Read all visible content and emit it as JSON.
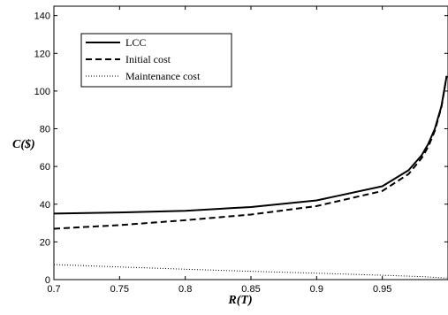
{
  "chart_data": {
    "type": "line",
    "title": "",
    "xlabel": "R(T)",
    "ylabel": "C($)",
    "xlim": [
      0.7,
      1.0
    ],
    "ylim": [
      0,
      145
    ],
    "xticks": [
      0.7,
      0.75,
      0.8,
      0.85,
      0.9,
      0.95
    ],
    "xtick_labels": [
      "0.7",
      "0.75",
      "0.8",
      "0.85",
      "0.9",
      "0.95"
    ],
    "yticks": [
      0,
      20,
      40,
      60,
      80,
      100,
      120,
      140
    ],
    "ytick_labels": [
      "0",
      "20",
      "40",
      "60",
      "80",
      "100",
      "120",
      "140"
    ],
    "grid": false,
    "legend_position": "top-left",
    "series": [
      {
        "name": "LCC",
        "line_style": "solid",
        "color": "#000000",
        "x": [
          0.7,
          0.75,
          0.8,
          0.85,
          0.9,
          0.95,
          0.97,
          0.98,
          0.985,
          0.99,
          0.995,
          0.999
        ],
        "y": [
          35.0,
          35.6,
          36.5,
          38.5,
          42.0,
          49.5,
          58.0,
          66.0,
          72.0,
          80.0,
          92.0,
          108.0
        ]
      },
      {
        "name": "Initial cost",
        "line_style": "dashed",
        "color": "#000000",
        "x": [
          0.7,
          0.75,
          0.8,
          0.85,
          0.9,
          0.95,
          0.97,
          0.98,
          0.985,
          0.99,
          0.995,
          0.999
        ],
        "y": [
          27.0,
          28.9,
          31.5,
          34.5,
          39.0,
          47.0,
          56.0,
          64.5,
          70.5,
          79.0,
          91.5,
          108.0
        ]
      },
      {
        "name": "Maintenance cost",
        "line_style": "dotted",
        "color": "#000000",
        "x": [
          0.7,
          0.75,
          0.8,
          0.85,
          0.9,
          0.95,
          0.98,
          0.999
        ],
        "y": [
          8.0,
          6.7,
          5.5,
          4.4,
          3.4,
          2.3,
          1.6,
          0.8
        ]
      }
    ]
  }
}
